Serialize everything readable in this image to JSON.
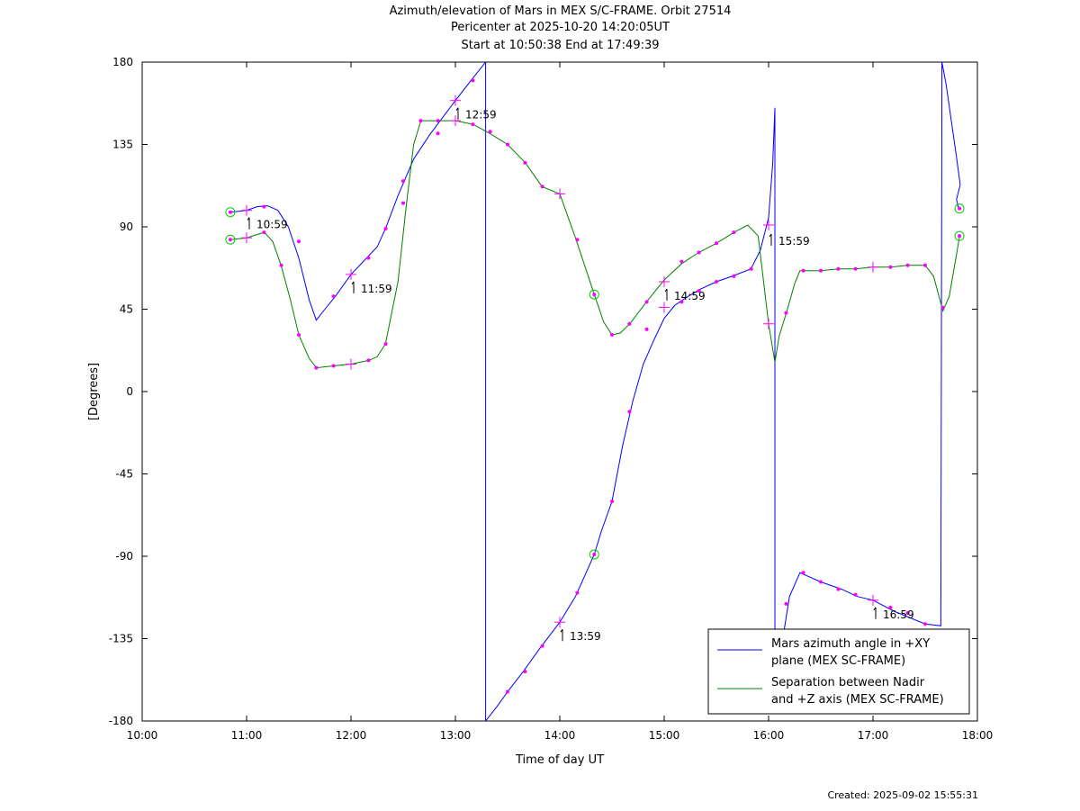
{
  "titles": [
    "Azimuth/elevation of Mars in MEX S/C-FRAME.  Orbit 27514",
    "Pericenter at 2025-10-20 14:20:05UT",
    "Start at 10:50:38 End at 17:49:39"
  ],
  "footer": "Created: 2025-09-02 15:55:31",
  "chart_data": {
    "type": "line",
    "xlabel": "Time of day UT",
    "ylabel": "[Degrees]",
    "xlim": [
      10.0,
      18.0
    ],
    "ylim": [
      -180,
      180
    ],
    "xticks": [
      10,
      11,
      12,
      13,
      14,
      15,
      16,
      17,
      18
    ],
    "xtick_labels": [
      "10:00",
      "11:00",
      "12:00",
      "13:00",
      "14:00",
      "15:00",
      "16:00",
      "17:00",
      "18:00"
    ],
    "yticks": [
      180,
      135,
      90,
      45,
      0,
      -45,
      -90,
      -135,
      -180
    ],
    "ytick_labels": [
      "180",
      "135",
      "90",
      "45",
      "0",
      "-45",
      "-90",
      "-135",
      "-180"
    ],
    "legend_position": "bottom-right",
    "colors": {
      "azimuth": "#0000ff",
      "separation": "#008000",
      "marker": "#ff00ff",
      "endpoint": "#00cc00"
    },
    "series": [
      {
        "name": "Mars azimuth angle in +XY\nplane (MEX SC-FRAME)",
        "color": "#0000ff",
        "segments": [
          [
            [
              10.844,
              98
            ],
            [
              11.0,
              99
            ],
            [
              11.1,
              101
            ],
            [
              11.2,
              101.5
            ],
            [
              11.3,
              99
            ],
            [
              11.4,
              90
            ],
            [
              11.5,
              73
            ],
            [
              11.6,
              50
            ],
            [
              11.667,
              39
            ],
            [
              11.75,
              45
            ],
            [
              11.85,
              52
            ],
            [
              12.0,
              64
            ],
            [
              12.15,
              73
            ],
            [
              12.25,
              79
            ],
            [
              12.33,
              89
            ],
            [
              12.45,
              107
            ],
            [
              12.6,
              127
            ],
            [
              12.75,
              140
            ],
            [
              13.0,
              159
            ],
            [
              13.15,
              170
            ],
            [
              13.29,
              180
            ]
          ],
          [
            [
              13.29,
              -180
            ],
            [
              13.4,
              -172
            ],
            [
              13.5,
              -164
            ],
            [
              13.65,
              -153
            ],
            [
              13.8,
              -141
            ],
            [
              14.0,
              -126
            ],
            [
              14.15,
              -112
            ],
            [
              14.33,
              -89
            ],
            [
              14.4,
              -76
            ],
            [
              14.5,
              -60
            ],
            [
              14.6,
              -30
            ],
            [
              14.7,
              -5
            ],
            [
              14.8,
              15
            ],
            [
              14.9,
              28
            ],
            [
              15.0,
              40
            ],
            [
              15.1,
              47
            ],
            [
              15.2,
              51
            ],
            [
              15.35,
              56
            ],
            [
              15.5,
              60
            ],
            [
              15.65,
              63
            ],
            [
              15.83,
              67
            ],
            [
              15.92,
              77
            ],
            [
              16.0,
              95
            ],
            [
              16.04,
              125
            ],
            [
              16.06,
              155
            ]
          ],
          [
            [
              16.06,
              -175
            ],
            [
              16.15,
              -130
            ],
            [
              16.2,
              -112
            ],
            [
              16.3,
              -99
            ],
            [
              16.5,
              -104
            ],
            [
              16.7,
              -108
            ],
            [
              16.85,
              -112
            ],
            [
              17.0,
              -114
            ],
            [
              17.2,
              -120
            ],
            [
              17.5,
              -127
            ],
            [
              17.65,
              -128
            ]
          ],
          [
            [
              17.66,
              180
            ],
            [
              17.7,
              168
            ],
            [
              17.8,
              128
            ],
            [
              17.835,
              113
            ],
            [
              17.8,
              105
            ],
            [
              17.82,
              100
            ],
            [
              17.828,
              100
            ]
          ]
        ],
        "time_labels": [
          {
            "label": "10:59",
            "x": 11.0,
            "y": 99
          },
          {
            "label": "11:59",
            "x": 12.0,
            "y": 64
          },
          {
            "label": "12:59",
            "x": 13.0,
            "y": 159
          },
          {
            "label": "13:59",
            "x": 14.0,
            "y": -126
          },
          {
            "label": "14:59",
            "x": 15.0,
            "y": 60
          },
          {
            "label": "15:59",
            "x": 16.0,
            "y": 90
          },
          {
            "label": "16:59",
            "x": 17.0,
            "y": -114
          }
        ]
      },
      {
        "name": "Separation between Nadir\nand +Z axis (MEX SC-FRAME)",
        "color": "#008000",
        "segments": [
          [
            [
              10.844,
              83
            ],
            [
              11.0,
              84
            ],
            [
              11.17,
              87
            ],
            [
              11.25,
              82
            ],
            [
              11.33,
              69
            ],
            [
              11.42,
              50
            ],
            [
              11.5,
              31
            ],
            [
              11.6,
              18
            ],
            [
              11.67,
              13
            ],
            [
              11.83,
              14
            ],
            [
              12.0,
              15
            ],
            [
              12.17,
              17
            ],
            [
              12.25,
              19
            ],
            [
              12.33,
              26
            ],
            [
              12.45,
              60
            ],
            [
              12.53,
              102
            ],
            [
              12.6,
              135
            ],
            [
              12.67,
              148
            ],
            [
              13.0,
              148
            ],
            [
              13.17,
              146
            ],
            [
              13.33,
              141
            ],
            [
              13.5,
              135
            ],
            [
              13.67,
              125
            ],
            [
              13.83,
              112
            ],
            [
              14.0,
              108
            ],
            [
              14.15,
              84
            ],
            [
              14.33,
              53
            ],
            [
              14.42,
              38
            ],
            [
              14.5,
              31
            ],
            [
              14.58,
              32
            ],
            [
              14.67,
              37
            ],
            [
              14.83,
              49
            ],
            [
              15.0,
              61
            ],
            [
              15.17,
              70
            ],
            [
              15.33,
              76
            ],
            [
              15.5,
              81
            ],
            [
              15.67,
              87
            ],
            [
              15.8,
              91
            ],
            [
              15.9,
              85
            ],
            [
              16.0,
              37
            ],
            [
              16.06,
              16
            ],
            [
              16.1,
              30
            ],
            [
              16.17,
              43
            ],
            [
              16.25,
              59
            ],
            [
              16.3,
              66
            ],
            [
              16.5,
              66
            ],
            [
              16.67,
              67
            ],
            [
              16.83,
              67
            ],
            [
              17.0,
              68
            ],
            [
              17.17,
              68
            ],
            [
              17.33,
              69
            ],
            [
              17.5,
              69
            ],
            [
              17.58,
              63
            ],
            [
              17.67,
              44
            ],
            [
              17.73,
              52
            ],
            [
              17.8,
              75
            ],
            [
              17.83,
              85
            ]
          ]
        ],
        "time_labels": []
      }
    ],
    "markers": {
      "dots_azimuth": [
        [
          11.167,
          101
        ],
        [
          11.5,
          82
        ],
        [
          11.833,
          52
        ],
        [
          12.167,
          73
        ],
        [
          12.333,
          89
        ],
        [
          12.5,
          115
        ],
        [
          12.833,
          141
        ],
        [
          13.167,
          170
        ],
        [
          13.5,
          -164
        ],
        [
          13.667,
          -153
        ],
        [
          13.833,
          -139
        ],
        [
          14.167,
          -110
        ],
        [
          14.5,
          -60
        ],
        [
          14.667,
          -11
        ],
        [
          14.833,
          34
        ],
        [
          15.167,
          49
        ],
        [
          15.333,
          55
        ],
        [
          15.5,
          60
        ],
        [
          15.667,
          63
        ],
        [
          15.833,
          67
        ],
        [
          16.167,
          -116
        ],
        [
          16.333,
          -99
        ],
        [
          16.5,
          -104
        ],
        [
          16.667,
          -108
        ],
        [
          16.833,
          -111
        ],
        [
          17.167,
          -118
        ],
        [
          17.333,
          -121
        ],
        [
          17.5,
          -127
        ]
      ],
      "dots_separation": [
        [
          11.167,
          87
        ],
        [
          11.333,
          69
        ],
        [
          11.5,
          31
        ],
        [
          11.667,
          13
        ],
        [
          11.833,
          14
        ],
        [
          12.167,
          17
        ],
        [
          12.333,
          26
        ],
        [
          12.5,
          103
        ],
        [
          12.667,
          148
        ],
        [
          12.833,
          148
        ],
        [
          13.167,
          146
        ],
        [
          13.333,
          142
        ],
        [
          13.5,
          135
        ],
        [
          13.667,
          125
        ],
        [
          13.833,
          112
        ],
        [
          14.167,
          83
        ],
        [
          14.5,
          31
        ],
        [
          14.667,
          37
        ],
        [
          14.833,
          49
        ],
        [
          15.167,
          71
        ],
        [
          15.333,
          76
        ],
        [
          15.5,
          81
        ],
        [
          15.667,
          87
        ],
        [
          16.167,
          43
        ],
        [
          16.333,
          66
        ],
        [
          16.5,
          66
        ],
        [
          16.667,
          67
        ],
        [
          16.833,
          67
        ],
        [
          17.167,
          68
        ],
        [
          17.333,
          69
        ],
        [
          17.5,
          69
        ],
        [
          17.667,
          46
        ]
      ],
      "crosses": [
        [
          11.0,
          99
        ],
        [
          11.0,
          84
        ],
        [
          12.0,
          64
        ],
        [
          12.0,
          15
        ],
        [
          13.0,
          159
        ],
        [
          13.0,
          148
        ],
        [
          14.0,
          108
        ],
        [
          14.0,
          -126
        ],
        [
          15.0,
          60
        ],
        [
          15.0,
          46
        ],
        [
          16.0,
          91
        ],
        [
          16.0,
          37
        ],
        [
          17.0,
          68
        ],
        [
          17.0,
          -114
        ]
      ],
      "circles": [
        [
          10.844,
          98
        ],
        [
          10.844,
          83
        ],
        [
          14.33,
          53
        ],
        [
          14.33,
          -89
        ],
        [
          17.828,
          100
        ],
        [
          17.828,
          85
        ]
      ]
    }
  }
}
